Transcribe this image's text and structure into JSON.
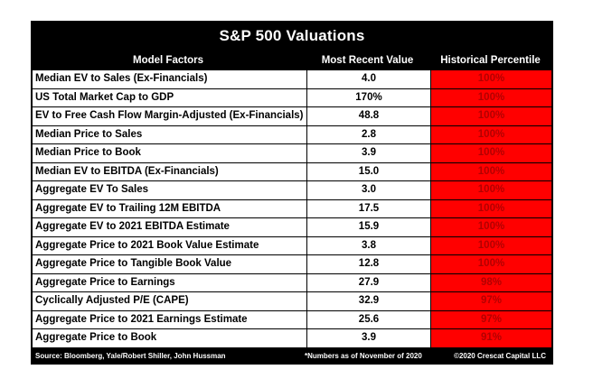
{
  "title": "S&P 500 Valuations",
  "headers": {
    "factor": "Model Factors",
    "value": "Most Recent Value",
    "percentile": "Historical Percentile"
  },
  "rows": [
    {
      "factor": "Median EV to Sales (Ex-Financials)",
      "value": "4.0",
      "percentile": "100%"
    },
    {
      "factor": "US Total Market Cap to GDP",
      "value": "170%",
      "percentile": "100%"
    },
    {
      "factor": "EV to Free Cash Flow Margin-Adjusted (Ex-Financials)",
      "value": "48.8",
      "percentile": "100%"
    },
    {
      "factor": "Median Price to Sales",
      "value": "2.8",
      "percentile": "100%"
    },
    {
      "factor": "Median Price to Book",
      "value": "3.9",
      "percentile": "100%"
    },
    {
      "factor": "Median EV to EBITDA (Ex-Financials)",
      "value": "15.0",
      "percentile": "100%"
    },
    {
      "factor": "Aggregate EV To Sales",
      "value": "3.0",
      "percentile": "100%"
    },
    {
      "factor": "Aggregate EV to Trailing 12M EBITDA",
      "value": "17.5",
      "percentile": "100%"
    },
    {
      "factor": "Aggregate EV to 2021 EBITDA Estimate",
      "value": "15.9",
      "percentile": "100%"
    },
    {
      "factor": "Aggregate Price to 2021 Book Value Estimate",
      "value": "3.8",
      "percentile": "100%"
    },
    {
      "factor": "Aggregate Price to Tangible Book Value",
      "value": "12.8",
      "percentile": "100%"
    },
    {
      "factor": "Aggregate Price to Earnings",
      "value": "27.9",
      "percentile": "98%"
    },
    {
      "factor": "Cyclically Adjusted P/E (CAPE)",
      "value": "32.9",
      "percentile": "97%"
    },
    {
      "factor": "Aggregate Price to 2021 Earnings Estimate",
      "value": "25.6",
      "percentile": "97%"
    },
    {
      "factor": "Aggregate Price to Book",
      "value": "3.9",
      "percentile": "91%"
    }
  ],
  "footer": {
    "source": "Source: Bloomberg, Yale/Robert Shiller, John Hussman",
    "note": "*Numbers as of November of 2020",
    "copyright": "©2020 Crescat Capital LLC"
  },
  "colors": {
    "background": "#000000",
    "percentile_fill": "#ff0000",
    "percentile_text": "#b30000"
  }
}
